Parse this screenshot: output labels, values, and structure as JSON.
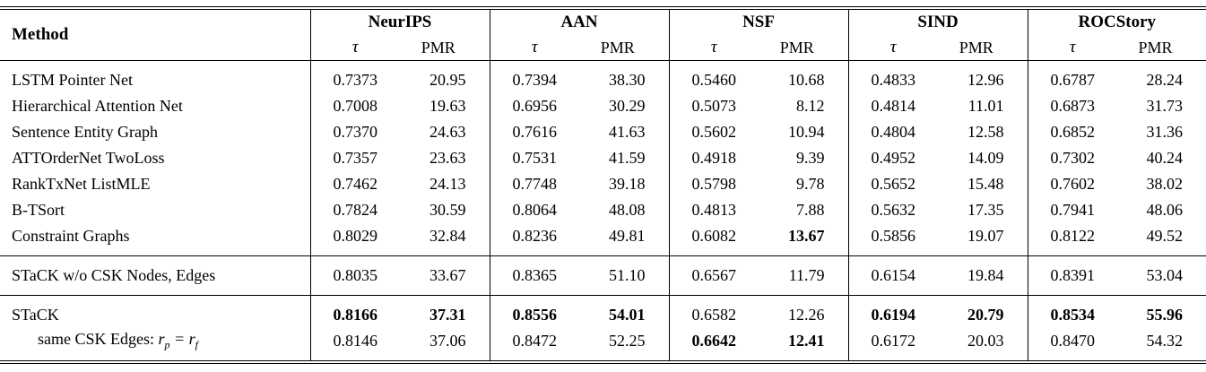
{
  "page": {
    "background": "#ffffff",
    "text_color": "#000000",
    "rule_color": "#000000"
  },
  "table": {
    "method_header": "Method",
    "groups": [
      {
        "name": "NeurIPS",
        "tau": "τ",
        "pmr": "PMR"
      },
      {
        "name": "AAN",
        "tau": "τ",
        "pmr": "PMR"
      },
      {
        "name": "NSF",
        "tau": "τ",
        "pmr": "PMR"
      },
      {
        "name": "SIND",
        "tau": "τ",
        "pmr": "PMR"
      },
      {
        "name": "ROCStory",
        "tau": "τ",
        "pmr": "PMR"
      }
    ],
    "sections": [
      {
        "rows": [
          {
            "method": "LSTM Pointer Net",
            "values": [
              "0.7373",
              "20.95",
              "0.7394",
              "38.30",
              "0.5460",
              "10.68",
              "0.4833",
              "12.96",
              "0.6787",
              "28.24"
            ],
            "bold": []
          },
          {
            "method": "Hierarchical Attention Net",
            "values": [
              "0.7008",
              "19.63",
              "0.6956",
              "30.29",
              "0.5073",
              "8.12",
              "0.4814",
              "11.01",
              "0.6873",
              "31.73"
            ],
            "bold": []
          },
          {
            "method": "Sentence Entity Graph",
            "values": [
              "0.7370",
              "24.63",
              "0.7616",
              "41.63",
              "0.5602",
              "10.94",
              "0.4804",
              "12.58",
              "0.6852",
              "31.36"
            ],
            "bold": []
          },
          {
            "method": "ATTOrderNet TwoLoss",
            "values": [
              "0.7357",
              "23.63",
              "0.7531",
              "41.59",
              "0.4918",
              "9.39",
              "0.4952",
              "14.09",
              "0.7302",
              "40.24"
            ],
            "bold": []
          },
          {
            "method": "RankTxNet ListMLE",
            "values": [
              "0.7462",
              "24.13",
              "0.7748",
              "39.18",
              "0.5798",
              "9.78",
              "0.5652",
              "15.48",
              "0.7602",
              "38.02"
            ],
            "bold": []
          },
          {
            "method": "B-TSort",
            "values": [
              "0.7824",
              "30.59",
              "0.8064",
              "48.08",
              "0.4813",
              "7.88",
              "0.5632",
              "17.35",
              "0.7941",
              "48.06"
            ],
            "bold": []
          },
          {
            "method": "Constraint Graphs",
            "values": [
              "0.8029",
              "32.84",
              "0.8236",
              "49.81",
              "0.6082",
              "13.67",
              "0.5856",
              "19.07",
              "0.8122",
              "49.52"
            ],
            "bold": [
              5
            ]
          }
        ]
      },
      {
        "rows": [
          {
            "method": "STaCK w/o CSK Nodes, Edges",
            "values": [
              "0.8035",
              "33.67",
              "0.8365",
              "51.10",
              "0.6567",
              "11.79",
              "0.6154",
              "19.84",
              "0.8391",
              "53.04"
            ],
            "bold": []
          }
        ]
      },
      {
        "rows": [
          {
            "method": "STaCK",
            "values": [
              "0.8166",
              "37.31",
              "0.8556",
              "54.01",
              "0.6582",
              "12.26",
              "0.6194",
              "20.79",
              "0.8534",
              "55.96"
            ],
            "bold": [
              0,
              1,
              2,
              3,
              6,
              7,
              8,
              9
            ]
          },
          {
            "method": "same CSK Edges: $r_p = r_f$",
            "indent": true,
            "values": [
              "0.8146",
              "37.06",
              "0.8472",
              "52.25",
              "0.6642",
              "12.41",
              "0.6172",
              "20.03",
              "0.8470",
              "54.32"
            ],
            "bold": [
              4,
              5
            ]
          }
        ]
      }
    ]
  }
}
